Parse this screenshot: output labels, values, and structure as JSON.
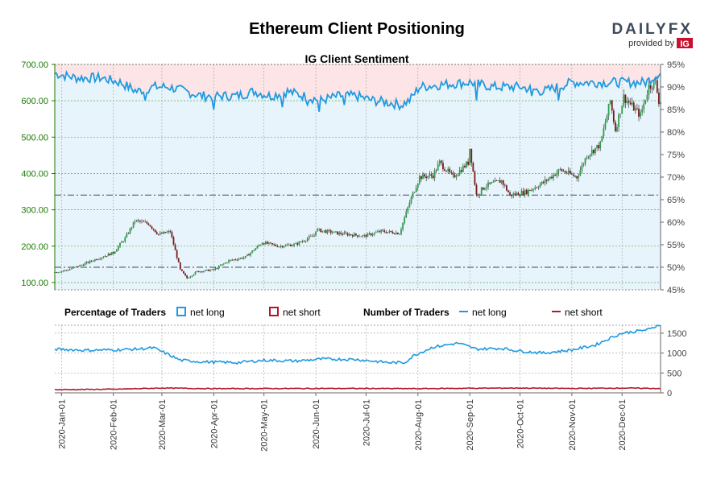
{
  "title": "Ethereum Client Positioning",
  "brand": {
    "name": "DAILYFX",
    "provided_by": "provided by",
    "ig_mark": "IG"
  },
  "legend": {
    "percentage_heading": "Percentage of Traders",
    "number_heading": "Number of Traders",
    "net_long": "net long",
    "net_short": "net short"
  },
  "colors": {
    "long": "#1f9ae0",
    "short": "#b2182b",
    "price_axis": "#1a7a00",
    "long_zone": "#e8f4fb",
    "short_zone": "#fde4e6",
    "candle_up": "#2e9e4a",
    "candle_down": "#7a1a1a",
    "grid": "#55aa55"
  },
  "chart_data": [
    {
      "type": "candlestick",
      "title": "IG Client Sentiment",
      "series_name": "Ethereum",
      "y_left_ticks": [
        "100.00",
        "200.00",
        "300.00",
        "400.00",
        "500.00",
        "600.00",
        "700.00"
      ],
      "y_left_range": [
        80,
        700
      ],
      "y_right_ticks": [
        "45%",
        "50%",
        "55%",
        "60%",
        "65%",
        "70%",
        "75%",
        "80%",
        "85%",
        "90%",
        "95%"
      ],
      "y_right_range": [
        45,
        95
      ],
      "x_ticks": [
        "2020-Jan-01",
        "2020-Feb-01",
        "2020-Mar-01",
        "2020-Apr-01",
        "2020-May-01",
        "2020-Jun-01",
        "2020-Jul-01",
        "2020-Aug-01",
        "2020-Sep-01",
        "2020-Oct-01",
        "2020-Nov-01",
        "2020-Dec-01"
      ],
      "reference_lines_pct": [
        50,
        66
      ],
      "price_anchors": [
        [
          "2019-12-28",
          128
        ],
        [
          "2020-01-05",
          135
        ],
        [
          "2020-01-14",
          150
        ],
        [
          "2020-01-22",
          165
        ],
        [
          "2020-02-01",
          182
        ],
        [
          "2020-02-08",
          222
        ],
        [
          "2020-02-14",
          270
        ],
        [
          "2020-02-22",
          262
        ],
        [
          "2020-02-28",
          232
        ],
        [
          "2020-03-06",
          240
        ],
        [
          "2020-03-12",
          135
        ],
        [
          "2020-03-16",
          112
        ],
        [
          "2020-03-22",
          130
        ],
        [
          "2020-04-01",
          135
        ],
        [
          "2020-04-10",
          160
        ],
        [
          "2020-04-20",
          170
        ],
        [
          "2020-04-30",
          210
        ],
        [
          "2020-05-10",
          200
        ],
        [
          "2020-05-20",
          205
        ],
        [
          "2020-05-31",
          230
        ],
        [
          "2020-06-01",
          245
        ],
        [
          "2020-06-15",
          235
        ],
        [
          "2020-06-30",
          228
        ],
        [
          "2020-07-10",
          241
        ],
        [
          "2020-07-21",
          236
        ],
        [
          "2020-07-27",
          320
        ],
        [
          "2020-08-02",
          390
        ],
        [
          "2020-08-10",
          395
        ],
        [
          "2020-08-14",
          430
        ],
        [
          "2020-08-22",
          390
        ],
        [
          "2020-08-31",
          430
        ],
        [
          "2020-09-01",
          470
        ],
        [
          "2020-09-05",
          340
        ],
        [
          "2020-09-10",
          365
        ],
        [
          "2020-09-20",
          380
        ],
        [
          "2020-09-25",
          340
        ],
        [
          "2020-10-05",
          350
        ],
        [
          "2020-10-15",
          375
        ],
        [
          "2020-10-25",
          410
        ],
        [
          "2020-11-04",
          390
        ],
        [
          "2020-11-10",
          450
        ],
        [
          "2020-11-18",
          480
        ],
        [
          "2020-11-24",
          600
        ],
        [
          "2020-11-27",
          520
        ],
        [
          "2020-12-02",
          610
        ],
        [
          "2020-12-06",
          590
        ],
        [
          "2020-12-12",
          560
        ],
        [
          "2020-12-17",
          640
        ],
        [
          "2020-12-21",
          650
        ],
        [
          "2020-12-23",
          600
        ]
      ],
      "long_pct_anchors": [
        [
          "2019-12-28",
          93
        ],
        [
          "2020-01-10",
          92
        ],
        [
          "2020-01-25",
          92
        ],
        [
          "2020-02-05",
          91
        ],
        [
          "2020-02-15",
          89
        ],
        [
          "2020-02-25",
          90
        ],
        [
          "2020-03-05",
          90
        ],
        [
          "2020-03-15",
          89
        ],
        [
          "2020-03-25",
          88
        ],
        [
          "2020-04-05",
          88
        ],
        [
          "2020-04-15",
          88
        ],
        [
          "2020-04-25",
          89
        ],
        [
          "2020-05-05",
          88
        ],
        [
          "2020-05-15",
          89
        ],
        [
          "2020-05-25",
          88
        ],
        [
          "2020-06-04",
          87
        ],
        [
          "2020-06-15",
          88
        ],
        [
          "2020-06-25",
          88
        ],
        [
          "2020-07-05",
          87
        ],
        [
          "2020-07-15",
          86.5
        ],
        [
          "2020-07-22",
          86
        ],
        [
          "2020-07-27",
          87
        ],
        [
          "2020-08-02",
          90
        ],
        [
          "2020-08-15",
          90.5
        ],
        [
          "2020-09-01",
          91
        ],
        [
          "2020-09-15",
          90
        ],
        [
          "2020-10-01",
          90
        ],
        [
          "2020-10-15",
          89
        ],
        [
          "2020-11-01",
          91
        ],
        [
          "2020-11-15",
          91
        ],
        [
          "2020-12-01",
          91
        ],
        [
          "2020-12-15",
          91
        ],
        [
          "2020-12-23",
          93
        ]
      ],
      "volatile_pct_days": [
        [
          "2020-02-20",
          87
        ],
        [
          "2020-04-01",
          85
        ],
        [
          "2020-05-12",
          85.5
        ],
        [
          "2020-05-27",
          86
        ],
        [
          "2020-06-03",
          84.5
        ],
        [
          "2020-06-18",
          86
        ],
        [
          "2020-09-05",
          87
        ],
        [
          "2020-10-08",
          88
        ],
        [
          "2020-10-24",
          87
        ]
      ]
    },
    {
      "type": "line",
      "title": "Number of Traders",
      "y_ticks": [
        "0",
        "500",
        "1000",
        "1500"
      ],
      "y_range": [
        0,
        1700
      ],
      "series": [
        {
          "name": "net long",
          "anchors": [
            [
              "2019-12-28",
              1100
            ],
            [
              "2020-01-15",
              1070
            ],
            [
              "2020-02-01",
              1080
            ],
            [
              "2020-02-15",
              1100
            ],
            [
              "2020-02-25",
              1130
            ],
            [
              "2020-03-03",
              1000
            ],
            [
              "2020-03-12",
              820
            ],
            [
              "2020-03-25",
              780
            ],
            [
              "2020-04-15",
              760
            ],
            [
              "2020-05-01",
              820
            ],
            [
              "2020-05-20",
              800
            ],
            [
              "2020-06-05",
              850
            ],
            [
              "2020-06-25",
              840
            ],
            [
              "2020-07-15",
              760
            ],
            [
              "2020-07-24",
              760
            ],
            [
              "2020-07-30",
              950
            ],
            [
              "2020-08-10",
              1150
            ],
            [
              "2020-08-25",
              1250
            ],
            [
              "2020-09-05",
              1100
            ],
            [
              "2020-09-20",
              1120
            ],
            [
              "2020-10-01",
              1050
            ],
            [
              "2020-10-15",
              1000
            ],
            [
              "2020-11-01",
              1080
            ],
            [
              "2020-11-15",
              1200
            ],
            [
              "2020-11-25",
              1400
            ],
            [
              "2020-12-01",
              1500
            ],
            [
              "2020-12-10",
              1550
            ],
            [
              "2020-12-18",
              1600
            ],
            [
              "2020-12-23",
              1720
            ]
          ]
        },
        {
          "name": "net short",
          "anchors": [
            [
              "2019-12-28",
              80
            ],
            [
              "2020-02-01",
              90
            ],
            [
              "2020-03-01",
              120
            ],
            [
              "2020-04-01",
              105
            ],
            [
              "2020-06-01",
              110
            ],
            [
              "2020-07-01",
              110
            ],
            [
              "2020-08-01",
              105
            ],
            [
              "2020-09-01",
              115
            ],
            [
              "2020-10-01",
              120
            ],
            [
              "2020-11-01",
              110
            ],
            [
              "2020-12-01",
              120
            ],
            [
              "2020-12-23",
              110
            ]
          ]
        }
      ]
    }
  ]
}
